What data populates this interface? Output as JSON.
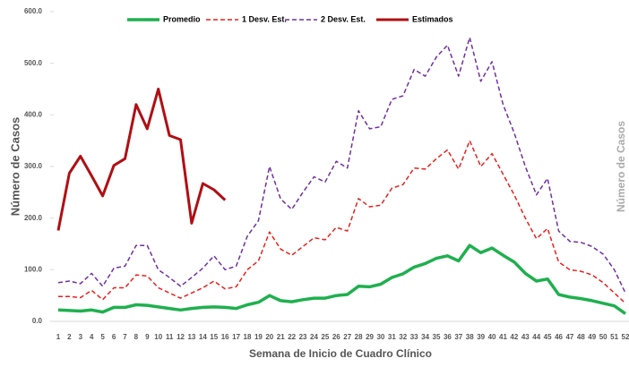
{
  "chart_data": {
    "type": "line",
    "ylabel": "Número de Casos",
    "y2label": "Número de Casos",
    "xlabel": "Semana de Inicio de Cuadro Clínico",
    "categories": [
      "1",
      "2",
      "3",
      "4",
      "5",
      "6",
      "7",
      "8",
      "9",
      "10",
      "11",
      "12",
      "13",
      "14",
      "15",
      "16",
      "17",
      "18",
      "19",
      "20",
      "21",
      "22",
      "23",
      "24",
      "25",
      "26",
      "27",
      "28",
      "29",
      "30",
      "31",
      "32",
      "33",
      "34",
      "35",
      "36",
      "37",
      "38",
      "39",
      "40",
      "41",
      "42",
      "43",
      "44",
      "45",
      "46",
      "47",
      "48",
      "49",
      "50",
      "51",
      "52"
    ],
    "ylim": [
      0,
      600
    ],
    "yticks": [
      {
        "value": 0,
        "label": "0.0"
      },
      {
        "value": 100,
        "label": "100.0"
      },
      {
        "value": 200,
        "label": "200.0"
      },
      {
        "value": 300,
        "label": "300.0"
      },
      {
        "value": 400,
        "label": "400.0"
      },
      {
        "value": 500,
        "label": "500.0"
      },
      {
        "value": 600,
        "label": "600.0"
      }
    ],
    "series": [
      {
        "name": "Promedio",
        "color": "#1fb04f",
        "style": "solid",
        "width": 3.5,
        "values": [
          22,
          21,
          20,
          22,
          18,
          27,
          27,
          32,
          31,
          28,
          25,
          22,
          25,
          27,
          28,
          27,
          25,
          32,
          37,
          50,
          40,
          38,
          42,
          45,
          45,
          50,
          52,
          68,
          67,
          72,
          85,
          92,
          105,
          112,
          122,
          127,
          117,
          147,
          133,
          142,
          128,
          115,
          93,
          78,
          82,
          52,
          47,
          44,
          40,
          35,
          30,
          15
        ]
      },
      {
        "name": "1 Desv. Est.",
        "color": "#e8201c",
        "style": "dashed",
        "width": 1.5,
        "values": [
          48,
          48,
          46,
          60,
          42,
          65,
          65,
          90,
          88,
          65,
          55,
          45,
          55,
          65,
          78,
          63,
          67,
          100,
          117,
          173,
          140,
          128,
          145,
          162,
          158,
          182,
          175,
          238,
          222,
          225,
          258,
          265,
          297,
          295,
          315,
          332,
          295,
          350,
          300,
          325,
          285,
          245,
          200,
          160,
          180,
          115,
          100,
          97,
          90,
          75,
          55,
          35
        ]
      },
      {
        "name": "2 Desv. Est.",
        "color": "#7030a0",
        "style": "dashed",
        "width": 1.5,
        "values": [
          75,
          78,
          73,
          93,
          68,
          103,
          107,
          147,
          147,
          100,
          85,
          68,
          85,
          103,
          127,
          100,
          107,
          165,
          195,
          300,
          237,
          217,
          250,
          280,
          270,
          310,
          297,
          408,
          373,
          377,
          430,
          437,
          488,
          475,
          512,
          535,
          475,
          550,
          465,
          503,
          420,
          365,
          300,
          245,
          277,
          175,
          155,
          153,
          145,
          130,
          100,
          55
        ]
      },
      {
        "name": "Estimados",
        "color": "#b00f14",
        "style": "solid",
        "width": 3,
        "values": [
          176,
          287,
          320,
          282,
          243,
          302,
          315,
          420,
          373,
          450,
          360,
          352,
          190,
          267,
          255,
          235,
          null,
          null,
          null,
          null,
          null,
          null,
          null,
          null,
          null,
          null,
          null,
          null,
          null,
          null,
          null,
          null,
          null,
          null,
          null,
          null,
          null,
          null,
          null,
          null,
          null,
          null,
          null,
          null,
          null,
          null,
          null,
          null,
          null,
          null,
          null,
          null
        ]
      }
    ]
  }
}
